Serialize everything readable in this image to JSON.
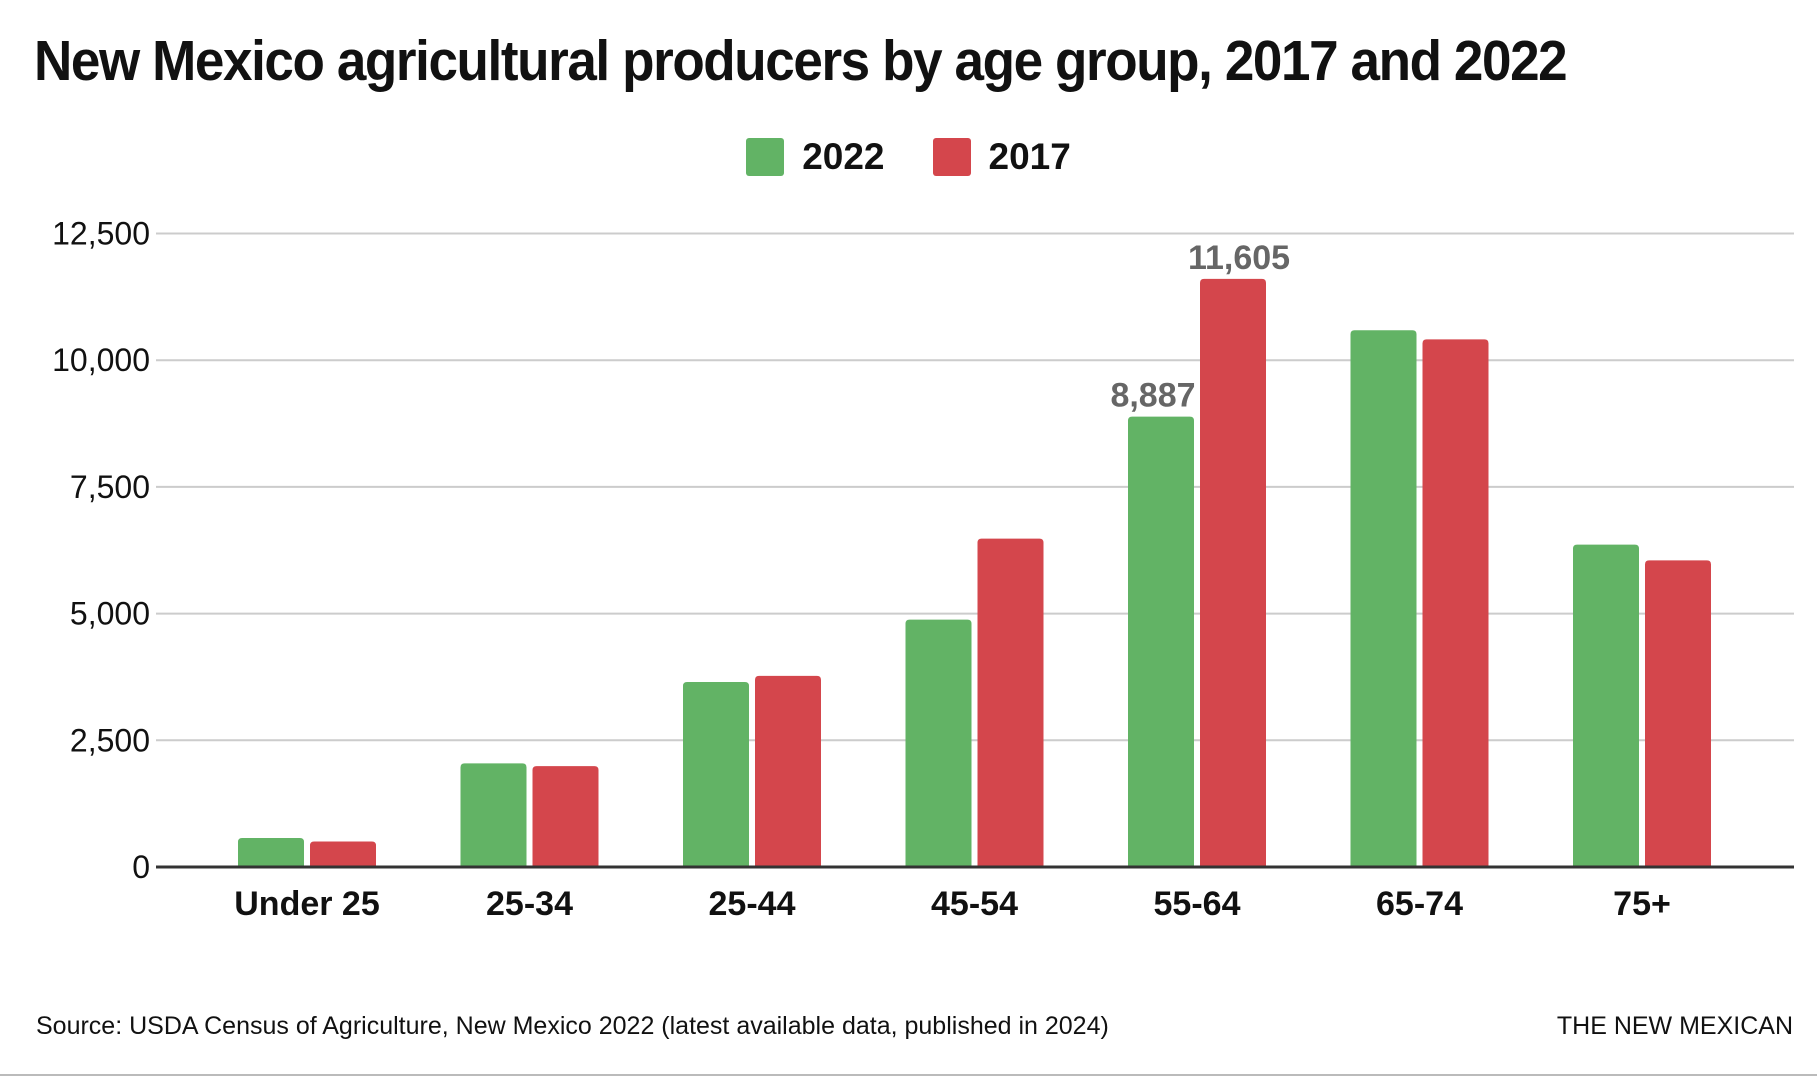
{
  "chart_data": {
    "type": "bar",
    "title": "New Mexico agricultural producers by age group, 2017 and 2022",
    "categories": [
      "Under 25",
      "25-34",
      "25-44",
      "45-54",
      "55-64",
      "65-74",
      "75+"
    ],
    "series": [
      {
        "name": "2022",
        "color": "#62b365",
        "values": [
          572,
          2045,
          3650,
          4880,
          8887,
          10590,
          6360
        ]
      },
      {
        "name": "2017",
        "color": "#d4464c",
        "values": [
          503,
          1990,
          3770,
          6480,
          11605,
          10410,
          6050
        ]
      }
    ],
    "data_labels": [
      {
        "series": 0,
        "index": 4,
        "text": "8,887"
      },
      {
        "series": 1,
        "index": 4,
        "text": "11,605"
      }
    ],
    "yticks": [
      0,
      2500,
      5000,
      7500,
      10000,
      12500
    ],
    "ytick_labels": [
      "0",
      "2,500",
      "5,000",
      "7,500",
      "10,000",
      "12,500"
    ],
    "ylim": [
      0,
      12500
    ],
    "xlabel": "",
    "ylabel": "",
    "grid": true,
    "legend_position": "top-center"
  },
  "footer": {
    "source": "Source: USDA Census of Agriculture, New Mexico 2022 (latest available data, published in 2024)",
    "brand": "THE NEW MEXICAN"
  }
}
